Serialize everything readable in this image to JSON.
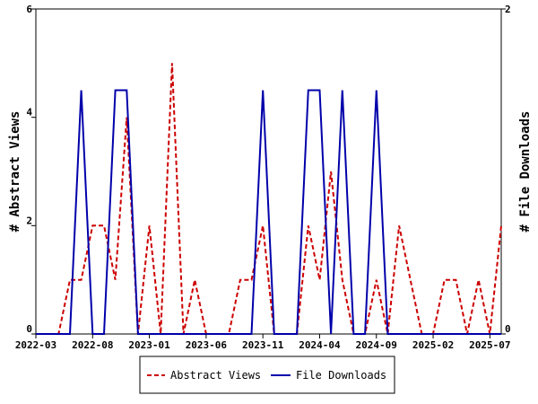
{
  "chart_data": {
    "type": "line",
    "x_labels": [
      "2022-03",
      "2022-04",
      "2022-05",
      "2022-06",
      "2022-07",
      "2022-08",
      "2022-09",
      "2022-10",
      "2022-11",
      "2022-12",
      "2023-01",
      "2023-02",
      "2023-03",
      "2023-04",
      "2023-05",
      "2023-06",
      "2023-07",
      "2023-08",
      "2023-09",
      "2023-10",
      "2023-11",
      "2023-12",
      "2024-01",
      "2024-02",
      "2024-03",
      "2024-04",
      "2024-05",
      "2024-06",
      "2024-07",
      "2024-08",
      "2024-09",
      "2024-10",
      "2024-11",
      "2024-12",
      "2025-01",
      "2025-02",
      "2025-03",
      "2025-04",
      "2025-05",
      "2025-06",
      "2025-07",
      "2025-08"
    ],
    "x_ticks": [
      "2022-03",
      "2022-08",
      "2023-01",
      "2023-06",
      "2023-11",
      "2024-04",
      "2024-09",
      "2025-02",
      "2025-07"
    ],
    "series": [
      {
        "name": "Abstract Views",
        "axis": "left",
        "color": "#cc0000",
        "style": "dashed",
        "values": [
          0,
          0,
          0,
          1,
          1,
          2,
          2,
          1,
          4,
          0,
          2,
          0,
          5,
          0,
          1,
          0,
          0,
          0,
          1,
          1,
          2,
          0,
          0,
          0,
          2,
          1,
          3,
          1,
          0,
          0,
          1,
          0,
          2,
          1,
          0,
          0,
          1,
          1,
          0,
          1,
          0,
          2
        ]
      },
      {
        "name": "File Downloads",
        "axis": "right",
        "color": "#0000aa",
        "style": "solid",
        "values": [
          0,
          0,
          0,
          0,
          1.5,
          0,
          0,
          1.5,
          1.5,
          0,
          0,
          0,
          0,
          0,
          0,
          0,
          0,
          0,
          0,
          0,
          1.5,
          0,
          0,
          0,
          1.5,
          1.5,
          0,
          1.5,
          0,
          0,
          1.5,
          0,
          0,
          0,
          0,
          0,
          0,
          0,
          0,
          0,
          0,
          0
        ]
      }
    ],
    "y_left": {
      "label": "# Abstract Views",
      "min": 0,
      "max": 6,
      "ticks": [
        0,
        2,
        4,
        6
      ]
    },
    "y_right": {
      "label": "# File Downloads",
      "min": 0,
      "max": 2,
      "ticks": [
        0,
        2
      ]
    },
    "grid": false,
    "legend_position": "bottom"
  }
}
